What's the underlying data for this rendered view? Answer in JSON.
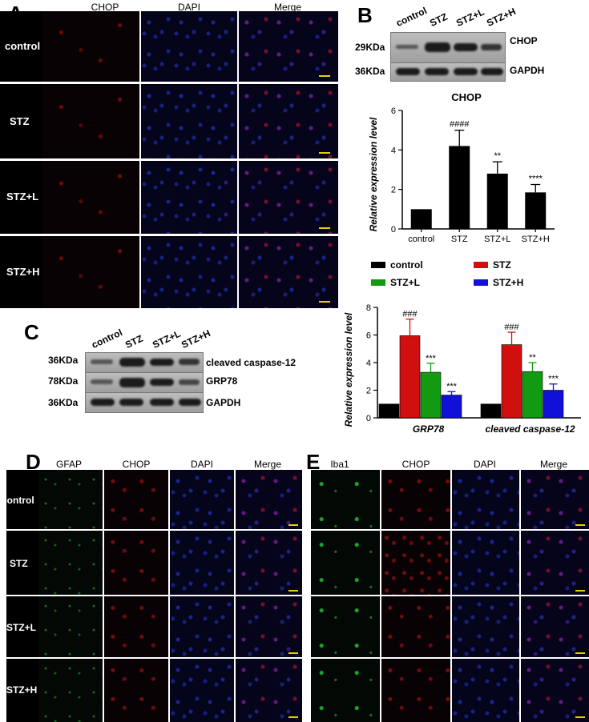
{
  "panelA": {
    "letter": "A",
    "columns": [
      "CHOP",
      "DAPI",
      "Merge"
    ],
    "rows": [
      "control",
      "STZ",
      "STZ+L",
      "STZ+H"
    ]
  },
  "panelB": {
    "letter": "B",
    "lanes": [
      "control",
      "STZ",
      "STZ+L",
      "STZ+H"
    ],
    "blots": [
      {
        "mw": "29KDa",
        "name": "CHOP"
      },
      {
        "mw": "36KDa",
        "name": "GAPDH"
      }
    ]
  },
  "panelC": {
    "letter": "C",
    "lanes": [
      "control",
      "STZ",
      "STZ+L",
      "STZ+H"
    ],
    "blots": [
      {
        "mw": "36KDa",
        "name": "cleaved caspase-12"
      },
      {
        "mw": "78KDa",
        "name": "GRP78"
      },
      {
        "mw": "36KDa",
        "name": "GAPDH"
      }
    ]
  },
  "panelD": {
    "letter": "D",
    "columns": [
      "GFAP",
      "CHOP",
      "DAPI",
      "Merge"
    ],
    "rows": [
      "control",
      "STZ",
      "STZ+L",
      "STZ+H"
    ]
  },
  "panelE": {
    "letter": "E",
    "columns": [
      "Iba1",
      "CHOP",
      "DAPI",
      "Merge"
    ]
  },
  "colors": {
    "control": "#000000",
    "STZ": "#d01010",
    "STZ+L": "#129a12",
    "STZ+H": "#1010d8",
    "scalebar": "#e8d000"
  },
  "chart_data": [
    {
      "type": "bar",
      "title": "CHOP",
      "categories": [
        "control",
        "STZ",
        "STZ+L",
        "STZ+H"
      ],
      "values": [
        1.0,
        4.2,
        2.8,
        1.85
      ],
      "errors": [
        0,
        0.8,
        0.6,
        0.4
      ],
      "annotations": [
        "",
        "####",
        "**",
        "****"
      ],
      "ylabel": "Relative expression level",
      "xlabel": "",
      "ylim": [
        0,
        6
      ],
      "yticks": [
        0,
        2,
        4,
        6
      ]
    },
    {
      "type": "bar",
      "title": "",
      "categories": [
        "GRP78",
        "cleaved caspase-12"
      ],
      "series": [
        {
          "name": "control",
          "values": [
            1.0,
            1.0
          ],
          "errors": [
            0,
            0
          ],
          "annotations": [
            "",
            ""
          ]
        },
        {
          "name": "STZ",
          "values": [
            5.95,
            5.3
          ],
          "errors": [
            1.2,
            0.9
          ],
          "annotations": [
            "###",
            "###"
          ]
        },
        {
          "name": "STZ+L",
          "values": [
            3.3,
            3.35
          ],
          "errors": [
            0.65,
            0.65
          ],
          "annotations": [
            "***",
            "**"
          ]
        },
        {
          "name": "STZ+H",
          "values": [
            1.65,
            2.0
          ],
          "errors": [
            0.25,
            0.45
          ],
          "annotations": [
            "***",
            "***"
          ]
        }
      ],
      "ylabel": "Relative expression level",
      "xlabel": "",
      "ylim": [
        0,
        8
      ],
      "yticks": [
        0,
        2,
        4,
        6,
        8
      ],
      "legend": "top"
    }
  ]
}
